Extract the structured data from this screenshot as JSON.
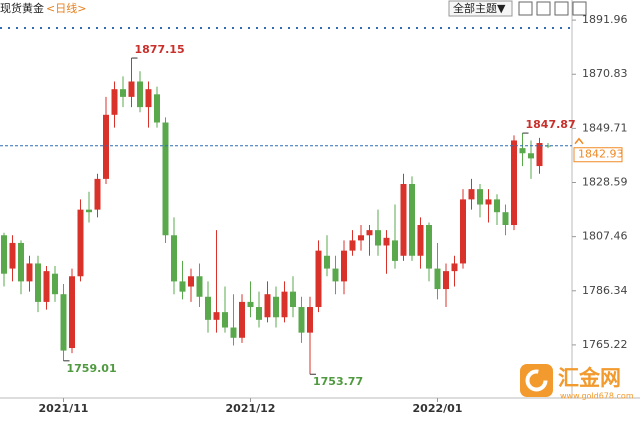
{
  "header": {
    "title": "现货黄金",
    "period": "<日线>",
    "button": "全部主题▼"
  },
  "watermark": {
    "name": "汇金网",
    "url": "www.gold678.com"
  },
  "chart_data": {
    "type": "candlestick",
    "up_color": "#d8322b",
    "down_color": "#5aa84c",
    "categories": [
      null,
      null,
      null,
      null,
      null,
      null,
      null,
      "2021/11",
      null,
      null,
      null,
      null,
      null,
      null,
      null,
      null,
      null,
      null,
      null,
      null,
      null,
      null,
      null,
      null,
      null,
      null,
      null,
      null,
      null,
      "2021/12",
      null,
      null,
      null,
      null,
      null,
      null,
      null,
      null,
      null,
      null,
      null,
      null,
      null,
      null,
      null,
      null,
      null,
      null,
      null,
      null,
      null,
      "2022/01",
      null,
      null,
      null,
      null,
      null,
      null,
      null,
      null,
      null,
      null,
      null,
      null,
      null
    ],
    "open": [
      1808,
      1795,
      1805,
      1790,
      1797,
      1782,
      1793,
      1785,
      1764,
      1792,
      1818,
      1818,
      1830,
      1855,
      1865,
      1862,
      1868,
      1858,
      1863,
      1852,
      1808,
      1790,
      1788,
      1792,
      1784,
      1775,
      1778,
      1772,
      1768,
      1782,
      1780,
      1776,
      1784,
      1776,
      1786,
      1780,
      1770,
      1780,
      1800,
      1795,
      1790,
      1802,
      1806,
      1808,
      1810,
      1804,
      1806,
      1800,
      1828,
      1800,
      1812,
      1795,
      1787,
      1794,
      1797,
      1822,
      1826,
      1820,
      1822,
      1817,
      1812,
      1842,
      1840,
      1835,
      1843
    ],
    "high": [
      1809,
      1808,
      1806,
      1800,
      1800,
      1796,
      1796,
      1789,
      1795,
      1822,
      1825,
      1832,
      1862,
      1868,
      1870,
      1877.15,
      1872,
      1868,
      1866,
      1854,
      1815,
      1798,
      1795,
      1797,
      1790,
      1810,
      1788,
      1785,
      1785,
      1790,
      1786,
      1790,
      1788,
      1790,
      1792,
      1784,
      1784,
      1806,
      1808,
      1800,
      1806,
      1810,
      1812,
      1812,
      1818,
      1810,
      1820,
      1832,
      1831,
      1815,
      1813,
      1805,
      1797,
      1800,
      1826,
      1830,
      1828,
      1826,
      1824,
      1820,
      1847,
      1847.87,
      1845,
      1846,
      1844
    ],
    "low": [
      1788,
      1790,
      1785,
      1786,
      1778,
      1779,
      1782,
      1759.01,
      1762,
      1790,
      1813,
      1815,
      1828,
      1850,
      1858,
      1858,
      1856,
      1850,
      1850,
      1805,
      1785,
      1783,
      1782,
      1780,
      1770,
      1770,
      1770,
      1765,
      1766,
      1776,
      1772,
      1774,
      1772,
      1774,
      1776,
      1766,
      1753.77,
      1778,
      1792,
      1785,
      1785,
      1800,
      1802,
      1800,
      1800,
      1793,
      1795,
      1798,
      1798,
      1795,
      1790,
      1783,
      1780,
      1788,
      1795,
      1818,
      1815,
      1813,
      1812,
      1808,
      1810,
      1835,
      1830,
      1832,
      1842
    ],
    "close": [
      1793,
      1805,
      1790,
      1797,
      1782,
      1794,
      1785,
      1763,
      1792,
      1818,
      1817,
      1830,
      1855,
      1865,
      1862,
      1868,
      1858,
      1865,
      1852,
      1808,
      1790,
      1786,
      1792,
      1784,
      1775,
      1778,
      1772,
      1768,
      1782,
      1780,
      1775,
      1785,
      1776,
      1786,
      1780,
      1770,
      1780,
      1802,
      1795,
      1790,
      1802,
      1806,
      1808,
      1810,
      1804,
      1807,
      1798,
      1828,
      1800,
      1812,
      1795,
      1787,
      1794,
      1797,
      1822,
      1826,
      1820,
      1822,
      1817,
      1812,
      1845,
      1840,
      1838,
      1844,
      1842.93
    ],
    "ylim": [
      1744.5,
      1899.8
    ],
    "yticks": [
      1765.22,
      1786.34,
      1807.46,
      1828.59,
      1849.71,
      1870.83,
      1891.96
    ]
  }
}
